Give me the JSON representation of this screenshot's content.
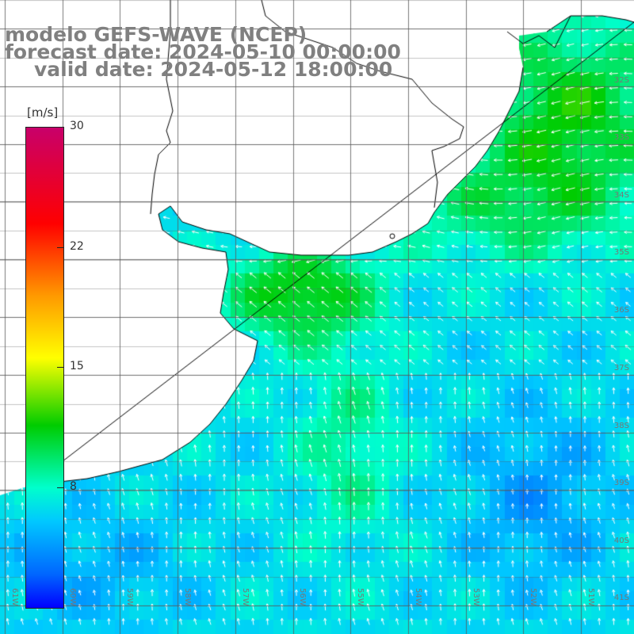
{
  "title": {
    "line1": "modelo GEFS-WAVE (NCEP)",
    "line2": "forecast date: 2024-05-10 00:00:00",
    "line3": "valid date: 2024-05-12 18:00:00"
  },
  "colorbar": {
    "unit": "[m/s]",
    "ticks": [
      "30",
      "22",
      "15",
      "8"
    ],
    "tick_values": [
      30,
      22,
      15,
      8
    ],
    "min": 0,
    "max": 30,
    "colors": [
      "#0000ff",
      "#0066ff",
      "#00c8ff",
      "#00ffcc",
      "#00cc00",
      "#ffff00",
      "#ff9900",
      "#ff0000",
      "#c8006a"
    ]
  },
  "map": {
    "type": "wind field (speed shading with direction arrows)",
    "lat_labels": [
      "32S",
      "33S",
      "34S",
      "35S",
      "36S",
      "37S",
      "38S",
      "39S",
      "40S",
      "41S"
    ],
    "lon_labels": [
      "61W",
      "60W",
      "59W",
      "58W",
      "57W",
      "56W",
      "55W",
      "54W",
      "53W",
      "52W",
      "51W"
    ],
    "graticule": true,
    "land_color": "#ffffff",
    "coast_color": "#000000"
  }
}
